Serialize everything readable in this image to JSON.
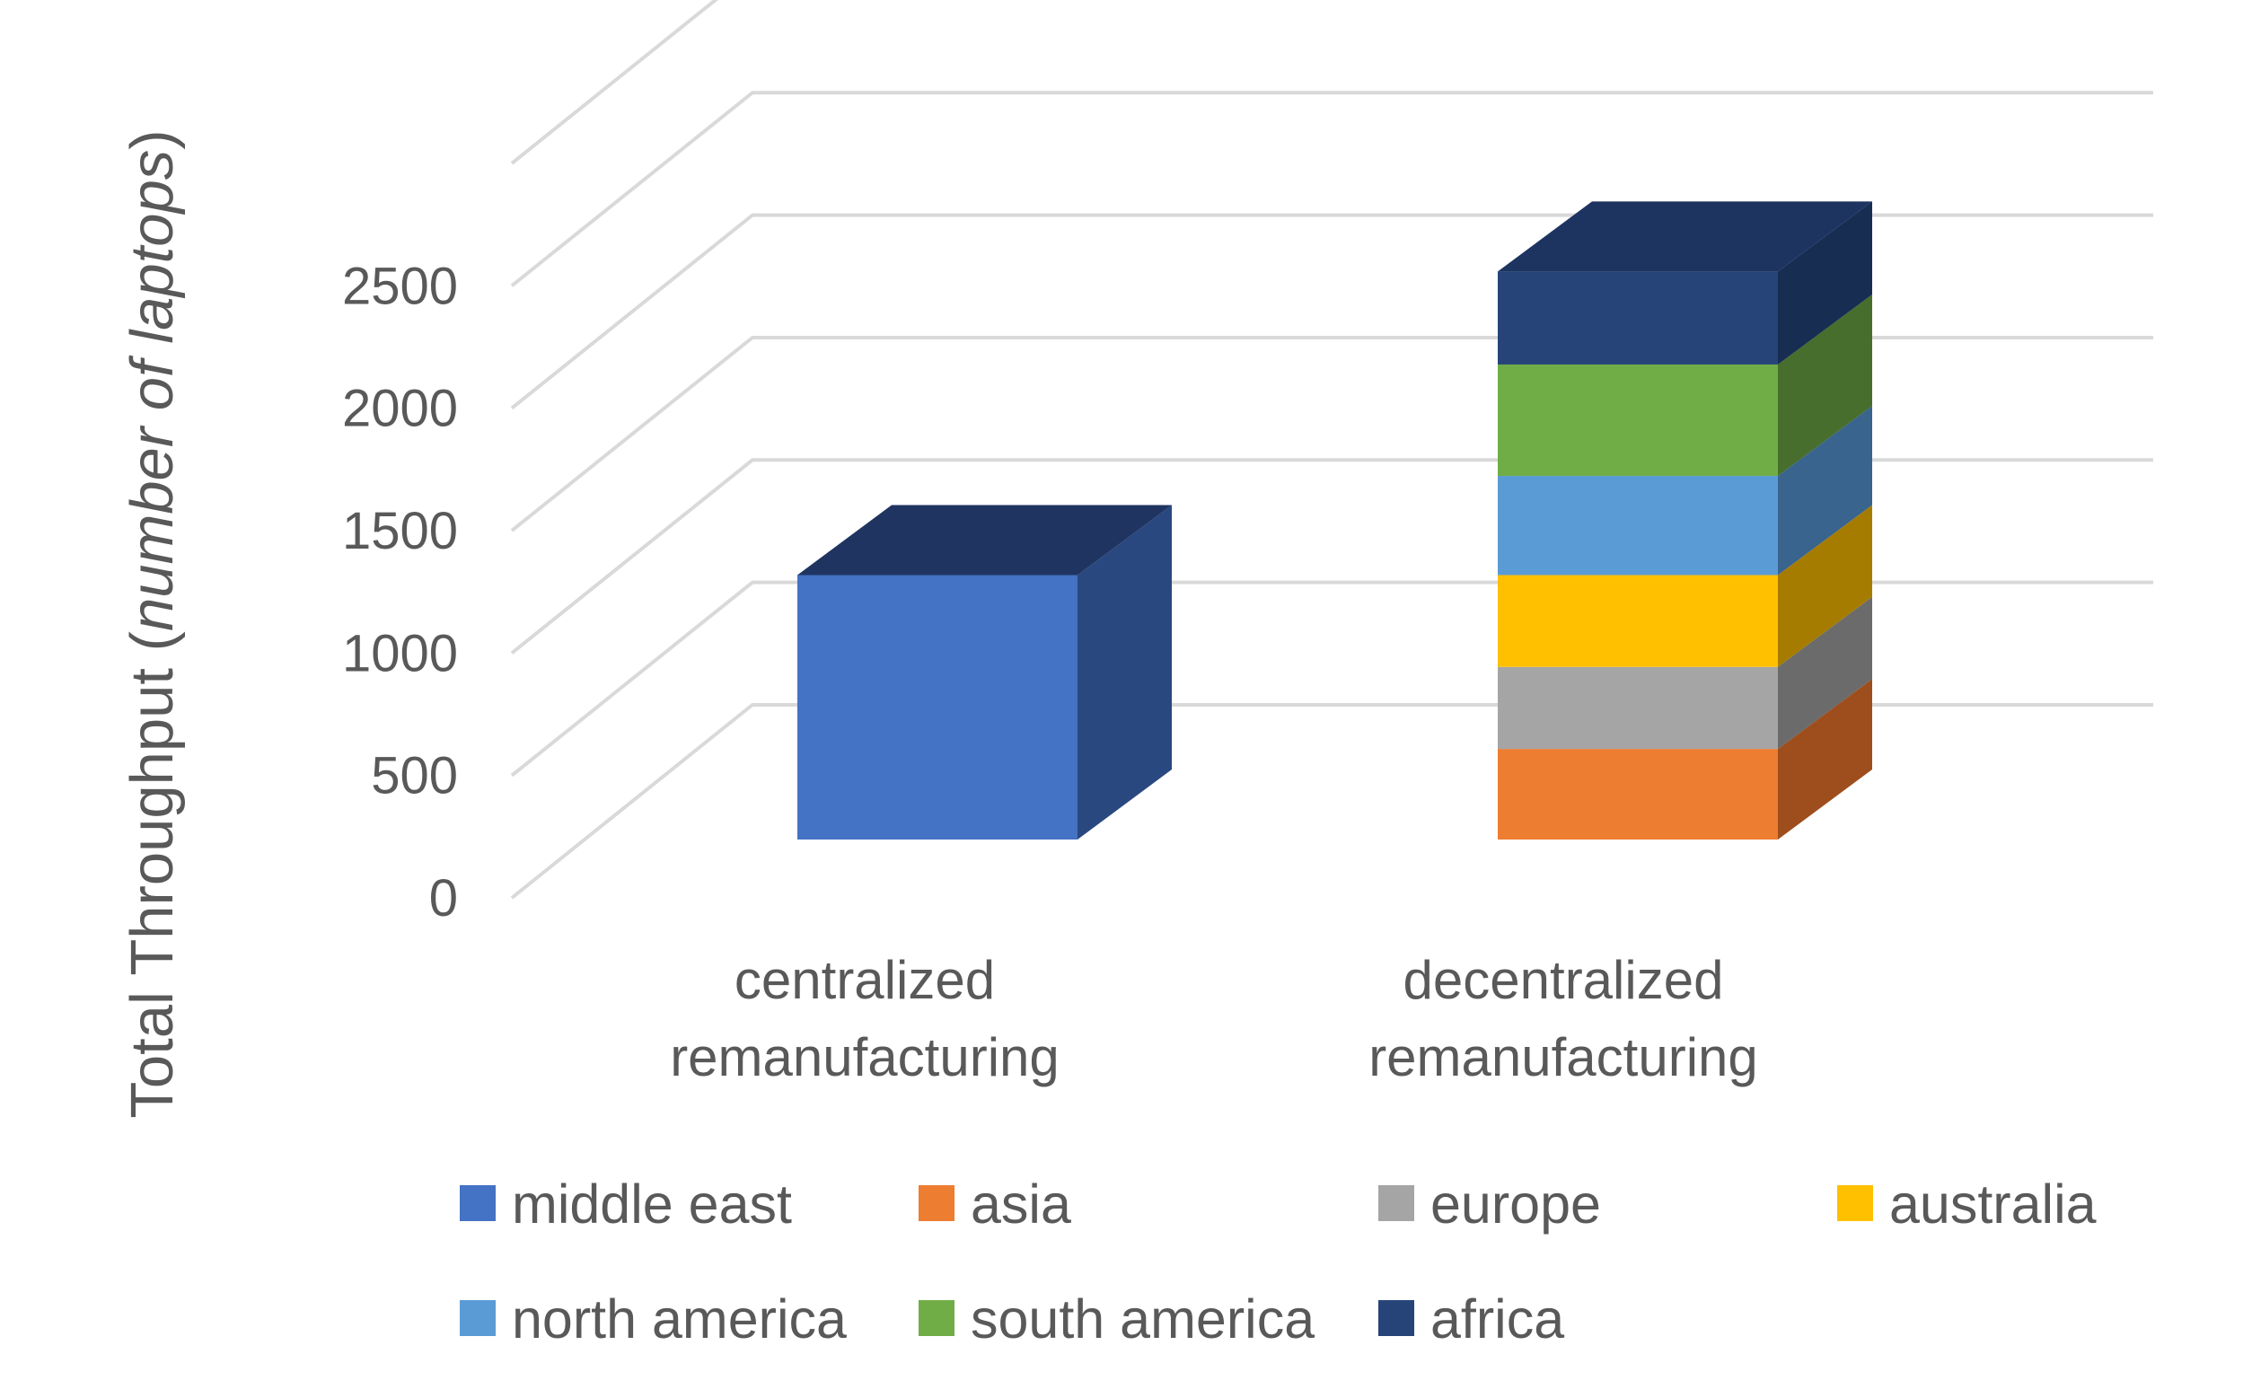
{
  "chart_data": {
    "type": "bar",
    "stacked": true,
    "style": "3d",
    "title": "",
    "xlabel": "",
    "ylabel": {
      "main": "Total Throughput (",
      "italic": "number of laptops",
      "close": ")"
    },
    "ylim": [
      0,
      3000
    ],
    "yticks": [
      0,
      500,
      1000,
      1500,
      2000,
      2500
    ],
    "categories": [
      {
        "line1": "centralized",
        "line2": "remanufacturing"
      },
      {
        "line1": "decentralized",
        "line2": "remanufacturing"
      }
    ],
    "series": [
      {
        "name": "middle east",
        "color": "#4472C4",
        "side": "#2A4880",
        "top": "#1F3460",
        "values": [
          1080,
          0
        ]
      },
      {
        "name": "asia",
        "color": "#ED7D31",
        "side": "#9E4E1D",
        "top": "#7A3B14",
        "values": [
          0,
          370
        ]
      },
      {
        "name": "europe",
        "color": "#A5A5A5",
        "side": "#6B6B6B",
        "top": "#525252",
        "values": [
          0,
          335
        ]
      },
      {
        "name": "australia",
        "color": "#FFC000",
        "side": "#A67C00",
        "top": "#7F5F00",
        "values": [
          0,
          375
        ]
      },
      {
        "name": "north america",
        "color": "#5B9BD5",
        "side": "#39648D",
        "top": "#2B4C6B",
        "values": [
          0,
          405
        ]
      },
      {
        "name": "south america",
        "color": "#70AD47",
        "side": "#476E2D",
        "top": "#365422",
        "values": [
          0,
          455
        ]
      },
      {
        "name": "africa",
        "color": "#264478",
        "side": "#182D52",
        "top": "#1D3461",
        "values": [
          0,
          380
        ]
      }
    ],
    "legend": {
      "position": "bottom",
      "columns": 4
    },
    "grid": true,
    "grid_color": "#D9D9D9"
  }
}
